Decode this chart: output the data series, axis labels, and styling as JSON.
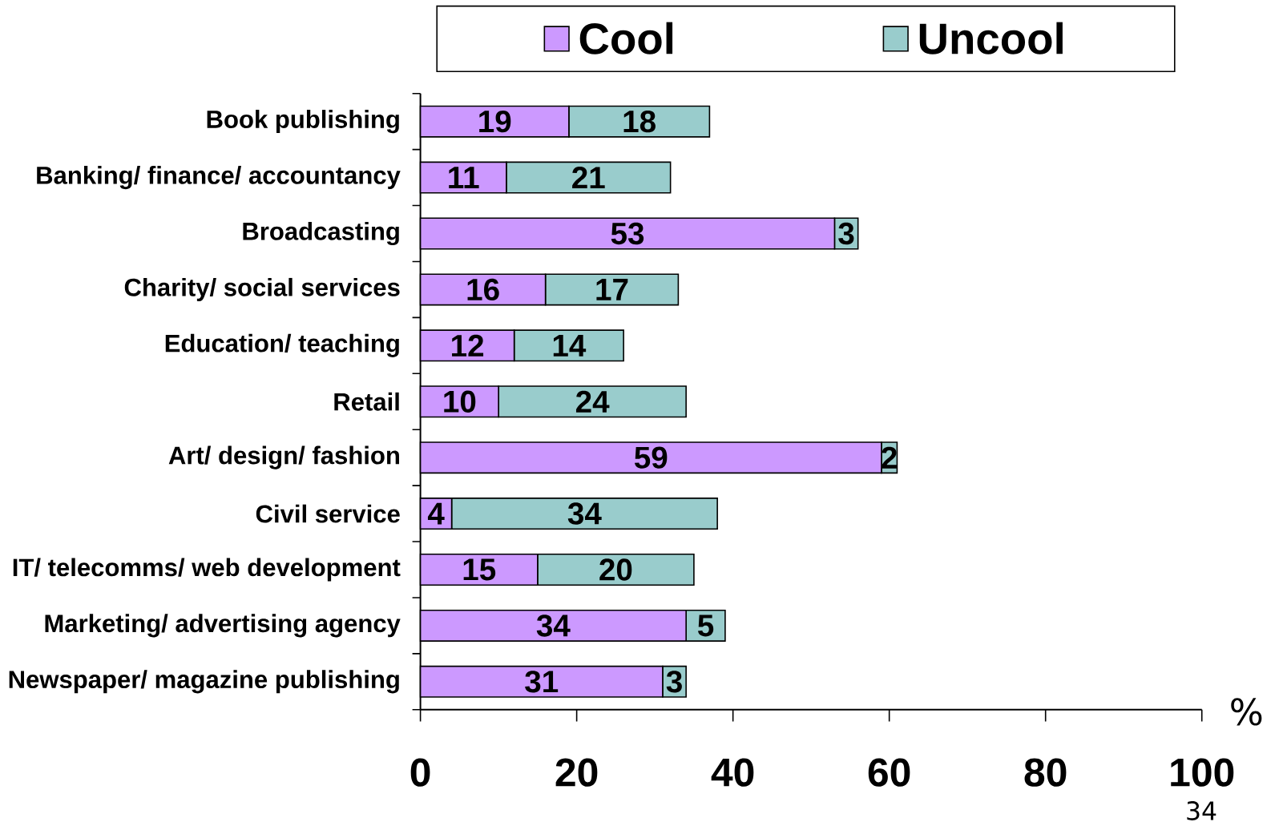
{
  "chart_data": {
    "type": "bar",
    "orientation": "horizontal",
    "stacked": true,
    "xlabel": "%",
    "annotations": [
      "34"
    ],
    "categories": [
      "Book publishing",
      "Banking/ finance/ accountancy",
      "Broadcasting",
      "Charity/ social services",
      "Education/ teaching",
      "Retail",
      "Art/ design/ fashion",
      "Civil service",
      "IT/ telecomms/ web development",
      "Marketing/ advertising agency",
      "Newspaper/ magazine publishing"
    ],
    "series": [
      {
        "name": "Cool",
        "color": "#cc99ff",
        "values": [
          19,
          11,
          53,
          16,
          12,
          10,
          59,
          4,
          15,
          34,
          31
        ]
      },
      {
        "name": "Uncool",
        "color": "#99cccc",
        "values": [
          18,
          21,
          3,
          17,
          14,
          24,
          2,
          34,
          20,
          5,
          3
        ]
      }
    ],
    "xlim": [
      0,
      100
    ],
    "xticks": [
      0,
      20,
      40,
      60,
      80,
      100
    ],
    "data_labels": true,
    "legend": "top"
  }
}
